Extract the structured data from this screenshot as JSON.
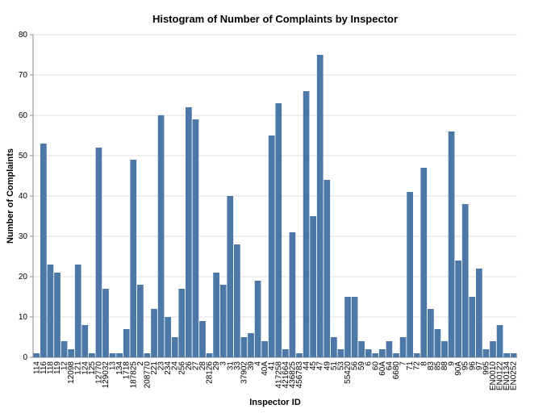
{
  "chart_data": {
    "type": "bar",
    "title": "Histogram of Number of Complaints by Inspector",
    "x_label": "Inspector ID",
    "y_label": "Number of Complaints",
    "categories": [
      "114",
      "116",
      "118",
      "119",
      "12",
      "12098",
      "121",
      "124",
      "125",
      "12770",
      "129032",
      "13",
      "134",
      "1718",
      "187825",
      "2",
      "208770",
      "221",
      "23",
      "234",
      "24",
      "256",
      "26",
      "27",
      "28",
      "28126",
      "29",
      "3",
      "31",
      "33",
      "37902",
      "39",
      "4",
      "40A",
      "41",
      "417258",
      "421664",
      "436825",
      "456783",
      "44",
      "45",
      "47",
      "49",
      "51",
      "53",
      "55420",
      "56",
      "59",
      "6",
      "60",
      "60A",
      "64",
      "6680",
      "7",
      "71",
      "72",
      "8",
      "83",
      "85",
      "88",
      "9",
      "90A",
      "95",
      "96",
      "97",
      "995",
      "EN0010",
      "EN0122",
      "EN0134",
      "EN0252"
    ],
    "values": [
      1,
      53,
      23,
      21,
      4,
      2,
      23,
      8,
      1,
      52,
      17,
      1,
      1,
      7,
      49,
      18,
      1,
      12,
      60,
      10,
      5,
      17,
      62,
      59,
      9,
      1,
      21,
      18,
      40,
      28,
      5,
      6,
      19,
      4,
      55,
      63,
      2,
      31,
      1,
      66,
      35,
      75,
      44,
      5,
      2,
      15,
      15,
      4,
      2,
      1,
      2,
      4,
      1,
      5,
      41,
      1,
      47,
      12,
      7,
      4,
      56,
      24,
      38,
      15,
      22,
      2,
      4,
      8,
      1,
      1
    ],
    "color": "#4c78a8",
    "ylim": [
      0,
      80
    ],
    "yticks": [
      0,
      10,
      20,
      30,
      40,
      50,
      60,
      70,
      80
    ],
    "grid": true
  }
}
